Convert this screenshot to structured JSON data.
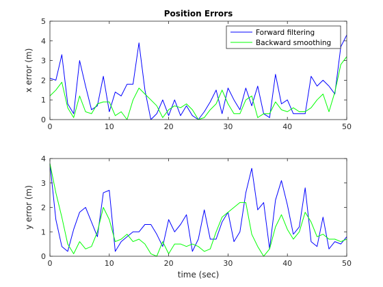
{
  "chart_data": [
    {
      "type": "line",
      "title": "Position Errors",
      "xlabel": "",
      "ylabel": "x error (m)",
      "xlim": [
        0,
        50
      ],
      "ylim": [
        0,
        5
      ],
      "xticks": [
        0,
        10,
        20,
        30,
        40,
        50
      ],
      "yticks": [
        0,
        1,
        2,
        3,
        4,
        5
      ],
      "grid": false,
      "legend_position": "top-right",
      "x": [
        0,
        1,
        2,
        3,
        4,
        5,
        6,
        7,
        8,
        9,
        10,
        11,
        12,
        13,
        14,
        15,
        16,
        17,
        18,
        19,
        20,
        21,
        22,
        23,
        24,
        25,
        26,
        27,
        28,
        29,
        30,
        31,
        32,
        33,
        34,
        35,
        36,
        37,
        38,
        39,
        40,
        41,
        42,
        43,
        44,
        45,
        46,
        47,
        48,
        49,
        50
      ],
      "series": [
        {
          "name": "Forward filtering",
          "color": "#0000ff",
          "values": [
            2.1,
            2.0,
            3.3,
            0.8,
            0.3,
            3.0,
            1.7,
            0.5,
            0.7,
            2.2,
            0.4,
            1.4,
            1.2,
            1.8,
            1.8,
            3.9,
            1.5,
            0.0,
            0.3,
            1.0,
            0.2,
            1.0,
            0.2,
            0.7,
            0.2,
            0.0,
            0.4,
            0.9,
            1.5,
            0.3,
            1.6,
            1.0,
            0.5,
            1.6,
            0.7,
            1.7,
            0.3,
            0.1,
            2.3,
            0.8,
            1.0,
            0.3,
            0.3,
            0.3,
            2.2,
            1.7,
            2.0,
            1.7,
            1.3,
            3.7,
            4.3
          ]
        },
        {
          "name": "Backward smoothing",
          "color": "#00ff00",
          "values": [
            1.2,
            1.5,
            1.9,
            0.6,
            0.1,
            1.2,
            0.4,
            0.3,
            0.8,
            0.9,
            0.9,
            0.2,
            0.4,
            0.0,
            1.0,
            1.6,
            1.3,
            1.0,
            0.7,
            0.1,
            0.5,
            0.7,
            0.6,
            0.8,
            0.5,
            0.0,
            0.1,
            0.5,
            0.8,
            1.5,
            0.8,
            0.3,
            0.3,
            1.0,
            1.2,
            0.1,
            0.3,
            0.3,
            0.9,
            0.5,
            0.4,
            0.6,
            0.4,
            0.4,
            0.6,
            1.0,
            1.3,
            0.4,
            1.4,
            2.8,
            3.2
          ]
        }
      ]
    },
    {
      "type": "line",
      "title": "",
      "xlabel": "time (sec)",
      "ylabel": "y error (m)",
      "xlim": [
        0,
        50
      ],
      "ylim": [
        0,
        4
      ],
      "xticks": [
        0,
        10,
        20,
        30,
        40,
        50
      ],
      "yticks": [
        0,
        1,
        2,
        3,
        4
      ],
      "grid": false,
      "x": [
        0,
        1,
        2,
        3,
        4,
        5,
        6,
        7,
        8,
        9,
        10,
        11,
        12,
        13,
        14,
        15,
        16,
        17,
        18,
        19,
        20,
        21,
        22,
        23,
        24,
        25,
        26,
        27,
        28,
        29,
        30,
        31,
        32,
        33,
        34,
        35,
        36,
        37,
        38,
        39,
        40,
        41,
        42,
        43,
        44,
        45,
        46,
        47,
        48,
        49,
        50
      ],
      "series": [
        {
          "name": "Forward filtering",
          "color": "#0000ff",
          "values": [
            3.8,
            1.5,
            0.4,
            0.2,
            1.1,
            1.8,
            2.0,
            1.4,
            0.8,
            2.6,
            2.7,
            0.2,
            0.6,
            0.8,
            1.0,
            1.0,
            1.3,
            1.3,
            0.9,
            0.4,
            1.5,
            1.0,
            1.3,
            1.7,
            0.2,
            0.7,
            1.9,
            0.7,
            0.7,
            1.4,
            1.8,
            0.6,
            1.0,
            2.6,
            3.6,
            1.9,
            2.2,
            0.3,
            2.3,
            3.1,
            2.1,
            0.9,
            1.2,
            2.8,
            0.6,
            0.4,
            1.6,
            0.3,
            0.6,
            0.5,
            0.8
          ]
        },
        {
          "name": "Backward smoothing",
          "color": "#00ff00",
          "values": [
            3.8,
            2.6,
            1.6,
            0.5,
            0.1,
            0.6,
            0.3,
            0.4,
            1.0,
            2.0,
            1.5,
            0.6,
            0.7,
            0.9,
            0.6,
            0.7,
            0.5,
            0.1,
            0.0,
            0.6,
            0.1,
            0.5,
            0.5,
            0.4,
            0.5,
            0.4,
            0.2,
            0.3,
            1.0,
            1.6,
            1.8,
            2.0,
            2.2,
            2.2,
            0.9,
            0.4,
            0.0,
            0.3,
            1.2,
            1.7,
            1.1,
            0.7,
            1.0,
            1.8,
            1.4,
            0.8,
            0.9,
            0.7,
            0.7,
            0.6,
            0.7
          ]
        }
      ]
    }
  ]
}
